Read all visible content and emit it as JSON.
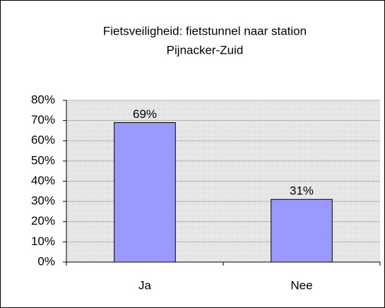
{
  "chart_data": {
    "type": "bar",
    "title": [
      "Fietsveiligheid: fietstunnel naar station",
      "Pijnacker-Zuid"
    ],
    "categories": [
      "Ja",
      "Nee"
    ],
    "values": [
      69,
      31
    ],
    "value_labels": [
      "69%",
      "31%"
    ],
    "color": "#9999ff",
    "ylim": [
      0,
      80
    ],
    "yticks": [
      {
        "value": 0,
        "label": "0%"
      },
      {
        "value": 10,
        "label": "10%"
      },
      {
        "value": 20,
        "label": "20%"
      },
      {
        "value": 30,
        "label": "30%"
      },
      {
        "value": 40,
        "label": "40%"
      },
      {
        "value": 50,
        "label": "50%"
      },
      {
        "value": 60,
        "label": "60%"
      },
      {
        "value": 70,
        "label": "70%"
      },
      {
        "value": 80,
        "label": "80%"
      }
    ],
    "grid": true
  }
}
